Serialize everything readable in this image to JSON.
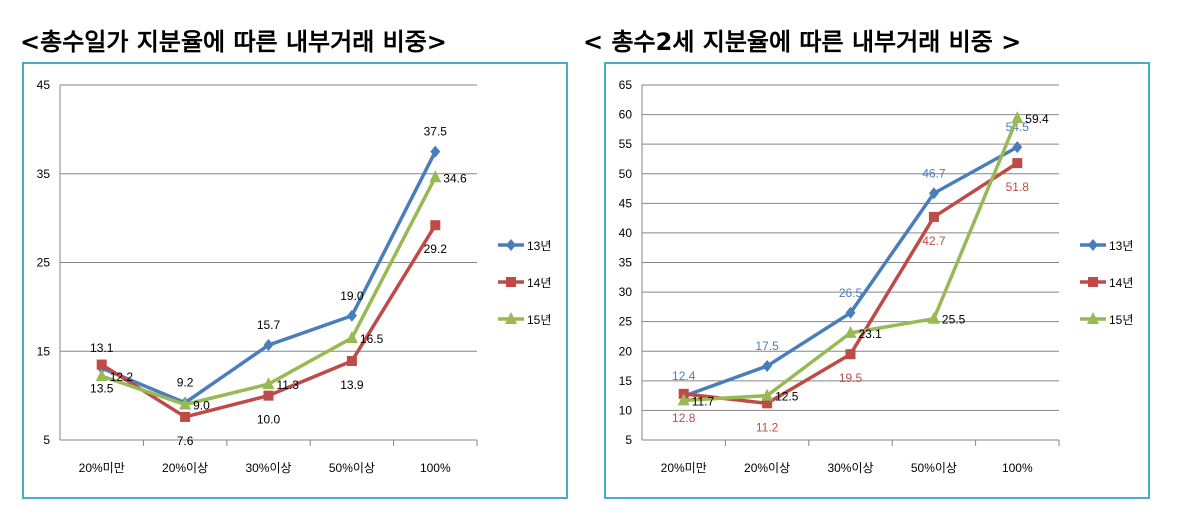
{
  "chart_data": [
    {
      "type": "line",
      "title": "<총수일가 지분율에 따른 내부거래 비중>",
      "categories": [
        "20%미만",
        "20%이상",
        "30%이상",
        "50%이상",
        "100%"
      ],
      "ylim": [
        5,
        45
      ],
      "yticks": [
        5,
        15,
        25,
        35,
        45
      ],
      "grid": true,
      "legend": "right",
      "series": [
        {
          "name": "13년",
          "color": "#4a7ebb",
          "marker": "diamond",
          "values": [
            13.1,
            9.2,
            15.7,
            19.0,
            37.5
          ],
          "labels": [
            "13.1",
            "9.2",
            "15.7",
            "19.0",
            "37.5"
          ],
          "label_color": "#000000"
        },
        {
          "name": "14년",
          "color": "#be4b48",
          "marker": "square",
          "values": [
            13.5,
            7.6,
            10.0,
            13.9,
            29.2
          ],
          "labels": [
            "13.5",
            "7.6",
            "10.0",
            "13.9",
            "29.2"
          ],
          "label_color": "#000000"
        },
        {
          "name": "15년",
          "color": "#98b954",
          "marker": "triangle",
          "values": [
            12.2,
            9.0,
            11.3,
            16.5,
            34.6
          ],
          "labels": [
            "12.2",
            "9.0",
            "11.3",
            "16.5",
            "34.6"
          ],
          "label_color": "#000000"
        }
      ]
    },
    {
      "type": "line",
      "title": "< 총수2세 지분율에 따른 내부거래 비중 >",
      "categories": [
        "20%미만",
        "20%이상",
        "30%이상",
        "50%이상",
        "100%"
      ],
      "ylim": [
        5,
        65
      ],
      "yticks": [
        5,
        10,
        15,
        20,
        25,
        30,
        35,
        40,
        45,
        50,
        55,
        60,
        65
      ],
      "grid": true,
      "legend": "right",
      "series": [
        {
          "name": "13년",
          "color": "#4a7ebb",
          "marker": "diamond",
          "values": [
            12.4,
            17.5,
            26.5,
            46.7,
            54.5
          ],
          "labels": [
            "12.4",
            "17.5",
            "26.5",
            "46.7",
            "54.5"
          ],
          "label_color": "#4a7ebb"
        },
        {
          "name": "14년",
          "color": "#be4b48",
          "marker": "square",
          "values": [
            12.8,
            11.2,
            19.5,
            42.7,
            51.8
          ],
          "labels": [
            "12.8",
            "11.2",
            "19.5",
            "42.7",
            "51.8"
          ],
          "label_color": "#be4b48"
        },
        {
          "name": "15년",
          "color": "#98b954",
          "marker": "triangle",
          "values": [
            11.7,
            12.5,
            23.1,
            25.5,
            59.4
          ],
          "labels": [
            "11.7",
            "12.5",
            "23.1",
            "25.5",
            "59.4"
          ],
          "label_color": "#000000"
        }
      ]
    }
  ]
}
